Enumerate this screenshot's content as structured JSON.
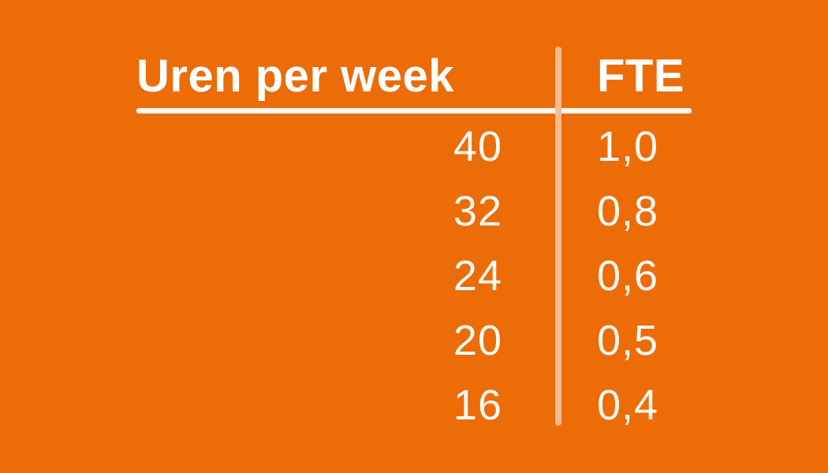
{
  "table": {
    "columns": [
      {
        "label": "Uren per week"
      },
      {
        "label": "FTE"
      }
    ],
    "rows": [
      {
        "hours": "40",
        "fte": "1,0"
      },
      {
        "hours": "32",
        "fte": "0,8"
      },
      {
        "hours": "24",
        "fte": "0,6"
      },
      {
        "hours": "20",
        "fte": "0,5"
      },
      {
        "hours": "16",
        "fte": "0,4"
      }
    ],
    "colors": {
      "background": "#EC6C08",
      "header_text": "#FFFFFF",
      "value_text": "#FDFAF4",
      "horizontal_rule": "#FBF7EE",
      "vertical_rule": "#F8BC8F"
    }
  },
  "chart_data": {
    "type": "table",
    "title": "",
    "columns": [
      "Uren per week",
      "FTE"
    ],
    "rows": [
      [
        "40",
        "1,0"
      ],
      [
        "32",
        "0,8"
      ],
      [
        "24",
        "0,6"
      ],
      [
        "20",
        "0,5"
      ],
      [
        "16",
        "0,4"
      ]
    ],
    "decimal_separator": ",",
    "language": "nl"
  }
}
